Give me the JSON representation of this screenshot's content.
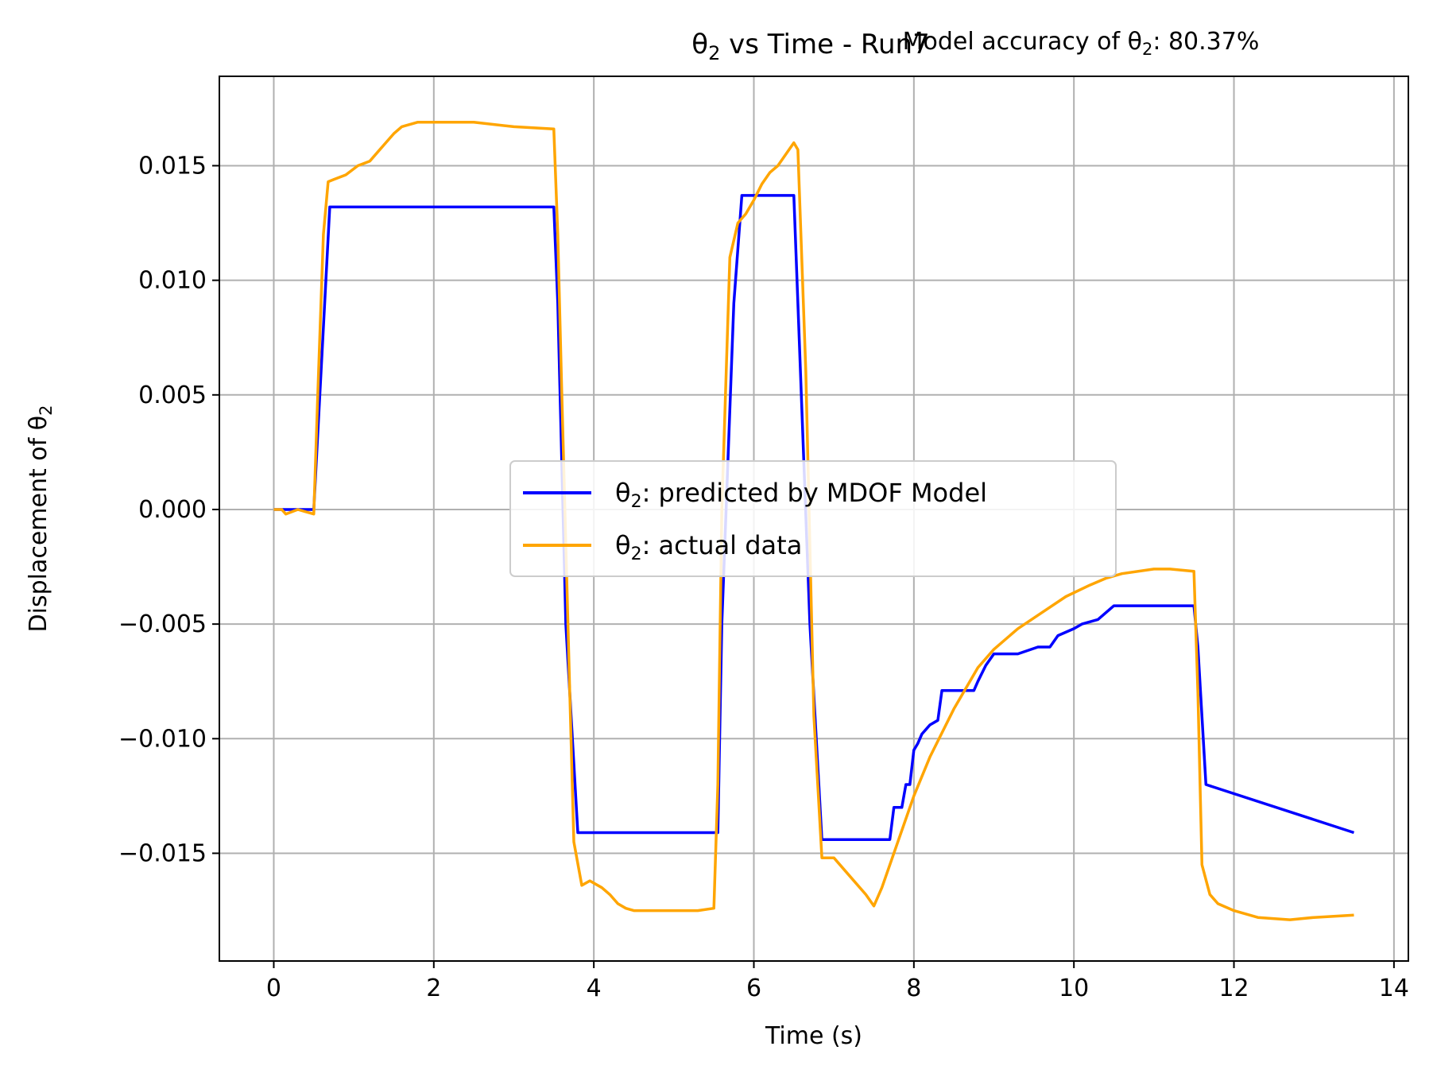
{
  "chart_data": {
    "type": "line",
    "title_prefix": "θ",
    "title_sub": "2",
    "title_suffix": " vs Time - Run7",
    "annotation_prefix": "Model accuracy of θ",
    "annotation_sub": "2",
    "annotation_suffix": ": 80.37%",
    "xlabel": "Time (s)",
    "ylabel_prefix": "Displacement of θ",
    "ylabel_sub": "2",
    "xlim": [
      -0.68,
      14.18
    ],
    "ylim": [
      -0.0197,
      0.0189
    ],
    "xticks": [
      0,
      2,
      4,
      6,
      8,
      10,
      12,
      14
    ],
    "xtick_labels": [
      "0",
      "2",
      "4",
      "6",
      "8",
      "10",
      "12",
      "14"
    ],
    "yticks": [
      -0.015,
      -0.01,
      -0.005,
      0.0,
      0.005,
      0.01,
      0.015
    ],
    "ytick_labels": [
      "−0.015",
      "−0.010",
      "−0.005",
      "0.000",
      "0.005",
      "0.010",
      "0.015"
    ],
    "grid": true,
    "legend_position": "center",
    "series": [
      {
        "name_prefix": "θ",
        "name_sub": "2",
        "name_suffix": ": predicted by MDOF Model",
        "color": "#0000ff",
        "x": [
          0,
          0.5,
          0.7,
          3.5,
          3.55,
          3.65,
          3.8,
          5.55,
          5.6,
          5.75,
          5.85,
          6.5,
          6.55,
          6.7,
          6.85,
          7.7,
          7.75,
          7.85,
          7.9,
          7.95,
          8.0,
          8.05,
          8.1,
          8.15,
          8.2,
          8.3,
          8.35,
          8.75,
          8.8,
          8.9,
          9.0,
          9.3,
          9.55,
          9.7,
          9.8,
          10.0,
          10.1,
          10.3,
          10.5,
          11.5,
          11.55,
          11.65,
          13.5
        ],
        "y": [
          0,
          0,
          0.0132,
          0.0132,
          0.009,
          -0.005,
          -0.0141,
          -0.0141,
          -0.005,
          0.009,
          0.0137,
          0.0137,
          0.009,
          -0.005,
          -0.0144,
          -0.0144,
          -0.013,
          -0.013,
          -0.012,
          -0.012,
          -0.0105,
          -0.0102,
          -0.0098,
          -0.0096,
          -0.0094,
          -0.0092,
          -0.0079,
          -0.0079,
          -0.0075,
          -0.0068,
          -0.0063,
          -0.0063,
          -0.006,
          -0.006,
          -0.0055,
          -0.0052,
          -0.005,
          -0.0048,
          -0.0042,
          -0.0042,
          -0.006,
          -0.012,
          -0.0141
        ]
      },
      {
        "name_prefix": "θ",
        "name_sub": "2",
        "name_suffix": ": actual data",
        "color": "#ffa500",
        "x": [
          0,
          0.1,
          0.15,
          0.3,
          0.5,
          0.55,
          0.62,
          0.68,
          0.75,
          0.9,
          1.05,
          1.2,
          1.3,
          1.4,
          1.5,
          1.6,
          1.7,
          1.8,
          2.0,
          2.5,
          3.0,
          3.5,
          3.55,
          3.6,
          3.7,
          3.75,
          3.85,
          3.95,
          4.1,
          4.2,
          4.3,
          4.4,
          4.5,
          4.7,
          5.0,
          5.3,
          5.5,
          5.55,
          5.6,
          5.7,
          5.8,
          5.9,
          6.0,
          6.1,
          6.2,
          6.3,
          6.4,
          6.5,
          6.55,
          6.65,
          6.75,
          6.85,
          7.0,
          7.2,
          7.4,
          7.5,
          7.6,
          7.8,
          8.0,
          8.2,
          8.5,
          8.8,
          9.0,
          9.3,
          9.6,
          9.9,
          10.2,
          10.4,
          10.6,
          11.0,
          11.2,
          11.5,
          11.55,
          11.6,
          11.7,
          11.8,
          12.0,
          12.3,
          12.7,
          13.0,
          13.5
        ],
        "y": [
          0,
          0,
          -0.0002,
          0,
          -0.0002,
          0.005,
          0.012,
          0.0143,
          0.0144,
          0.0146,
          0.015,
          0.0152,
          0.0156,
          0.016,
          0.0164,
          0.0167,
          0.0168,
          0.0169,
          0.0169,
          0.0169,
          0.0167,
          0.0166,
          0.012,
          0.005,
          -0.008,
          -0.0145,
          -0.0164,
          -0.0162,
          -0.0165,
          -0.0168,
          -0.0172,
          -0.0174,
          -0.0175,
          -0.0175,
          -0.0175,
          -0.0175,
          -0.0174,
          -0.012,
          0.0,
          0.011,
          0.0125,
          0.0129,
          0.0135,
          0.0142,
          0.0147,
          0.015,
          0.0155,
          0.016,
          0.0157,
          0.006,
          -0.009,
          -0.0152,
          -0.0152,
          -0.016,
          -0.0168,
          -0.0173,
          -0.0165,
          -0.0145,
          -0.0125,
          -0.0108,
          -0.0087,
          -0.0069,
          -0.0061,
          -0.0052,
          -0.0045,
          -0.0038,
          -0.0033,
          -0.003,
          -0.0028,
          -0.0026,
          -0.0026,
          -0.0027,
          -0.008,
          -0.0155,
          -0.0168,
          -0.0172,
          -0.0175,
          -0.0178,
          -0.0179,
          -0.0178,
          -0.0177
        ]
      }
    ]
  }
}
